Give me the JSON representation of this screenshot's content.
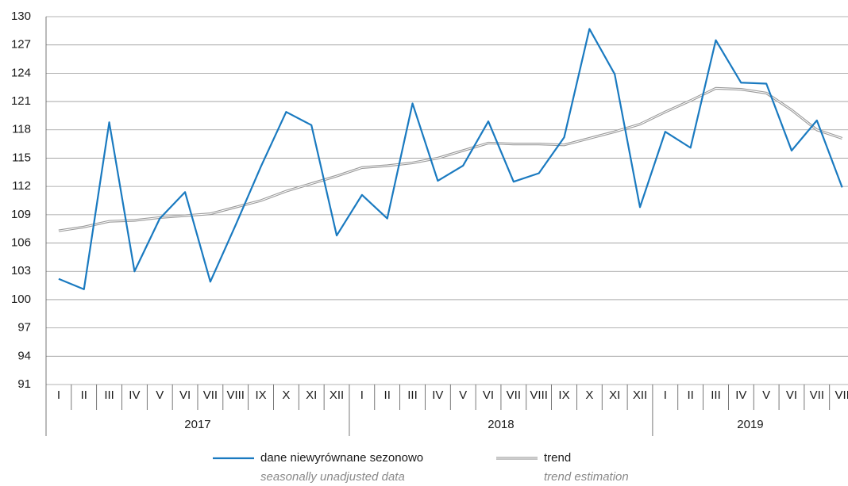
{
  "chart_data": {
    "type": "line",
    "categories": [
      "I",
      "II",
      "III",
      "IV",
      "V",
      "VI",
      "VII",
      "VIII",
      "IX",
      "X",
      "XI",
      "XII",
      "I",
      "II",
      "III",
      "IV",
      "V",
      "VI",
      "VII",
      "VIII",
      "IX",
      "X",
      "XI",
      "XII",
      "I",
      "II",
      "III",
      "IV",
      "V",
      "VI",
      "VII",
      "VII"
    ],
    "years": [
      "2017",
      "2018",
      "2019"
    ],
    "series": [
      {
        "name": "dane niewyrównane sezonowo",
        "name_en": "seasonally unadjusted data",
        "color": "#1a7ac0",
        "values": [
          102.2,
          101.1,
          118.8,
          103.0,
          108.6,
          111.4,
          101.9,
          107.9,
          114.1,
          119.9,
          118.5,
          106.8,
          111.1,
          108.6,
          120.8,
          112.6,
          114.2,
          118.9,
          112.5,
          113.4,
          117.2,
          128.7,
          123.9,
          109.8,
          117.8,
          116.1,
          127.5,
          123.0,
          122.9,
          115.8,
          119.0,
          111.9
        ]
      },
      {
        "name": "trend",
        "name_en": "trend estimation",
        "color": "#9a9a9a",
        "values": [
          107.3,
          107.7,
          108.3,
          108.4,
          108.7,
          108.9,
          109.1,
          109.8,
          110.5,
          111.5,
          112.3,
          113.1,
          114.0,
          114.2,
          114.5,
          115.0,
          115.8,
          116.6,
          116.5,
          116.5,
          116.4,
          117.1,
          117.8,
          118.6,
          119.9,
          121.1,
          122.4,
          122.3,
          121.9,
          120.1,
          118.0,
          117.1
        ]
      }
    ],
    "ylim": [
      91,
      130
    ],
    "yticks": [
      91,
      94,
      97,
      100,
      103,
      106,
      109,
      112,
      115,
      118,
      121,
      124,
      127,
      130
    ],
    "grid": true
  }
}
